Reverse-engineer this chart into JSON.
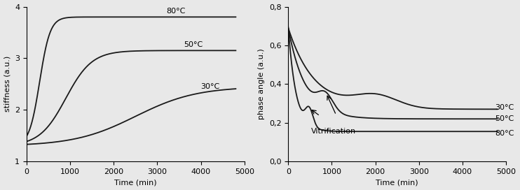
{
  "left_xlabel": "Time (min)",
  "left_ylabel": "stiffness (a.u.)",
  "left_xlim": [
    0,
    5000
  ],
  "left_ylim": [
    1,
    4
  ],
  "left_yticks": [
    1,
    2,
    3,
    4
  ],
  "left_xticks": [
    0,
    1000,
    2000,
    3000,
    4000,
    5000
  ],
  "right_xlabel": "Time (min)",
  "right_ylabel": "phase angle (a.u.)",
  "right_xlim": [
    0,
    5000
  ],
  "right_ylim": [
    0.0,
    0.8
  ],
  "right_yticks": [
    0.0,
    0.2,
    0.4,
    0.6,
    0.8
  ],
  "right_xticks": [
    0,
    1000,
    2000,
    3000,
    4000,
    5000
  ],
  "line_color": "#1a1a1a",
  "background_color": "#e8e8e8",
  "label_80_stiff": "80°C",
  "label_50_stiff": "50°C",
  "label_30_stiff": "30°C",
  "label_30_phase": "30°C",
  "label_50_phase": "50°C",
  "label_80_phase": "80°C",
  "vitrification_label": "Vitrification",
  "font_size_label": 8,
  "font_size_axis": 8,
  "lw": 1.3
}
